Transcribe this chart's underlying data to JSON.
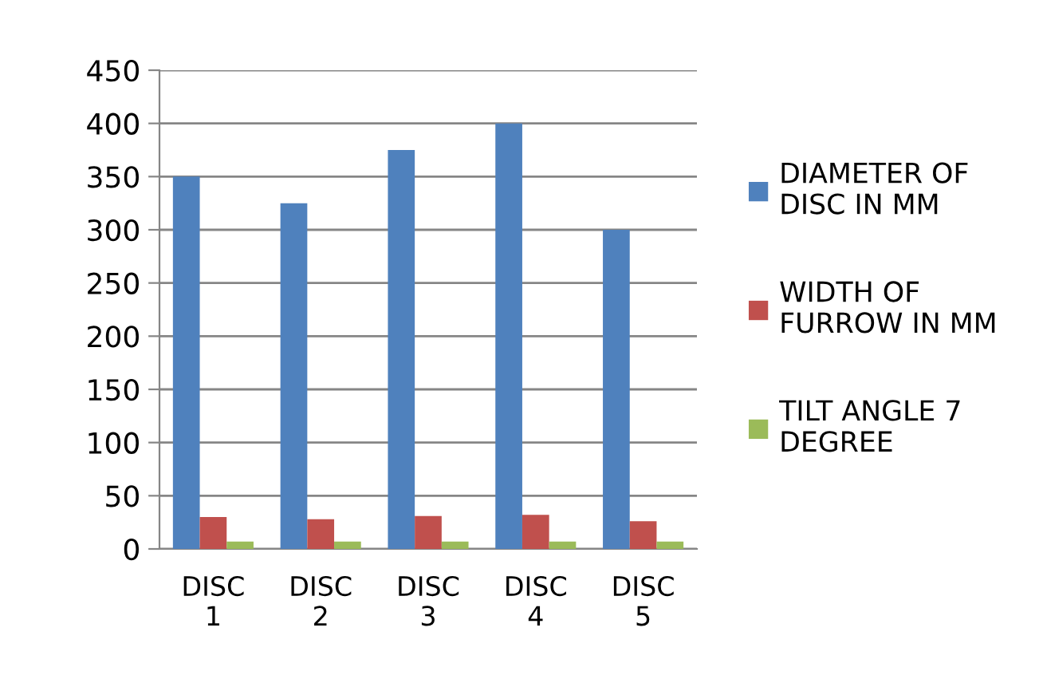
{
  "chart_data": {
    "type": "bar",
    "categories": [
      "DISC 1",
      "DISC 2",
      "DISC 3",
      "DISC 4",
      "DISC 5"
    ],
    "series": [
      {
        "name": "DIAMETER OF DISC IN MM",
        "color": "#4f81bd",
        "values": [
          350,
          325,
          375,
          400,
          300
        ]
      },
      {
        "name": "WIDTH OF FURROW IN MM",
        "color": "#c0504d",
        "values": [
          30,
          28,
          31,
          32,
          26
        ]
      },
      {
        "name": "TILT ANGLE 7 DEGREE",
        "color": "#9bbb59",
        "values": [
          7,
          7,
          7,
          7,
          7
        ]
      }
    ],
    "ylim": [
      0,
      450
    ],
    "yticks": [
      0,
      50,
      100,
      150,
      200,
      250,
      300,
      350,
      400,
      450
    ],
    "grid": "y",
    "legend": "right"
  }
}
